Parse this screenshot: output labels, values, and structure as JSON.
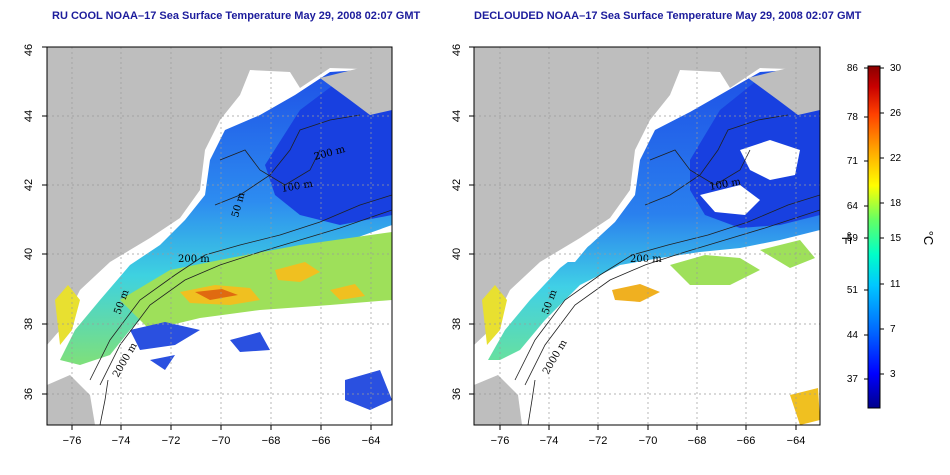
{
  "panels": {
    "left": {
      "title": "RU COOL NOAA–17 Sea Surface Temperature May 29, 2008 02:07 GMT",
      "contours": [
        "100 m",
        "200 m",
        "200 m",
        "50 m",
        "2000 m",
        "50 m"
      ]
    },
    "right": {
      "title": "DECLOUDED NOAA–17 Sea Surface Temperature May 29, 2008 02:07 GMT",
      "contours": [
        "100 m",
        "200 m",
        "50 m",
        "2000 m"
      ]
    }
  },
  "axes": {
    "x_ticks": [
      "−76",
      "−74",
      "−72",
      "−70",
      "−68",
      "−66",
      "−64"
    ],
    "y_ticks": [
      "36",
      "38",
      "40",
      "42",
      "44",
      "46"
    ]
  },
  "colorbar": {
    "fahrenheit_ticks": [
      "86",
      "78",
      "71",
      "64",
      "59",
      "51",
      "44",
      "37"
    ],
    "celsius_ticks": [
      "30",
      "26",
      "22",
      "18",
      "15",
      "11",
      "7",
      "3"
    ],
    "fahrenheit_unit": "°F",
    "celsius_unit": "°C",
    "range_c": [
      -0.5,
      30
    ],
    "colors": [
      "#00008b",
      "#0000ff",
      "#0064ff",
      "#00c8ff",
      "#00ffc8",
      "#64ff64",
      "#ffff00",
      "#ffaa00",
      "#ff4000",
      "#c80000",
      "#8b0000"
    ]
  },
  "colors": {
    "land": "#bebebe",
    "cloud": "#ffffff",
    "title": "#1c1c9c",
    "grid": "#9a9a9a"
  }
}
